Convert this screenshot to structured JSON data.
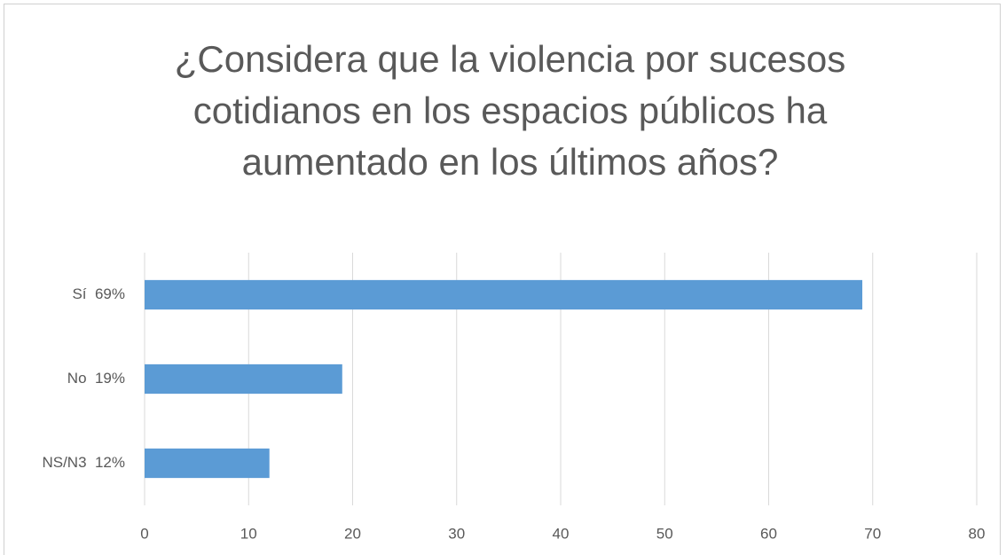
{
  "chart_data": {
    "type": "bar",
    "orientation": "horizontal",
    "title": "¿Considera que la violencia por sucesos cotidianos en los espacios públicos ha aumentado en los últimos años?",
    "categories": [
      "Sí  69%",
      "No  19%",
      "NS/N3  12%"
    ],
    "values": [
      69,
      19,
      12
    ],
    "color": "#5b9bd5",
    "xlim": [
      0,
      80
    ],
    "xticks": [
      0,
      10,
      20,
      30,
      40,
      50,
      60,
      70,
      80
    ],
    "grid": true
  }
}
